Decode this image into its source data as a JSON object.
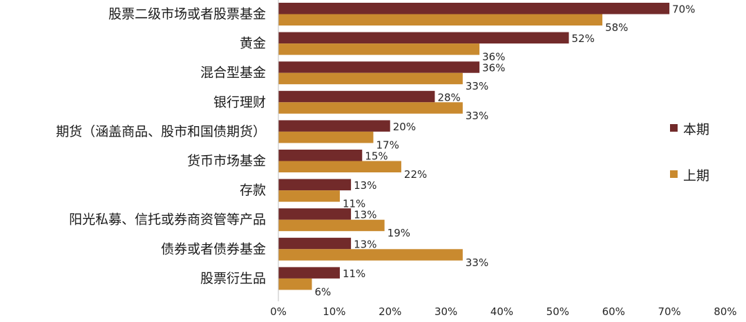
{
  "chart_data": {
    "type": "bar",
    "orientation": "horizontal",
    "categories": [
      "股票二级市场或者股票基金",
      "黄金",
      "混合型基金",
      "银行理财",
      "期货（涵盖商品、股市和国债期货）",
      "货币市场基金",
      "存款",
      "阳光私募、信托或券商资管等产品",
      "债券或者债券基金",
      "股票衍生品"
    ],
    "series": [
      {
        "name": "本期",
        "color": "#722a2a",
        "values": [
          70,
          52,
          36,
          28,
          20,
          15,
          13,
          13,
          13,
          11
        ],
        "labels": [
          "70%",
          "52%",
          "36%",
          "28%",
          "20%",
          "15%",
          "13%",
          "13%",
          "13%",
          "11%"
        ]
      },
      {
        "name": "上期",
        "color": "#c98a2f",
        "values": [
          58,
          36,
          33,
          33,
          17,
          22,
          11,
          19,
          33,
          6
        ],
        "labels": [
          "58%",
          "36%",
          "33%",
          "33%",
          "17%",
          "22%",
          "11%",
          "19%",
          "33%",
          "6%"
        ]
      }
    ],
    "xlim": [
      0,
      80
    ],
    "xticks": [
      "0%",
      "10%",
      "20%",
      "30%",
      "40%",
      "50%",
      "60%",
      "70%",
      "80%"
    ],
    "legend_position": "right",
    "grid": false
  }
}
